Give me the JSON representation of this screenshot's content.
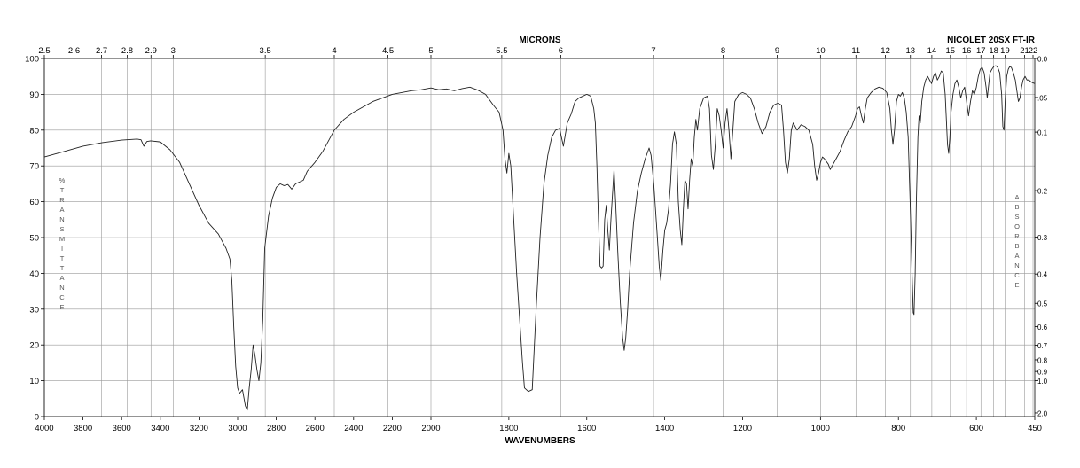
{
  "chart_data": {
    "type": "line",
    "instrument": "NICOLET 20SX FT-IR",
    "xlabel": "WAVENUMBERS",
    "x2label": "MICRONS",
    "ylabel": "%TRANSMITTANCE",
    "y2label": "ABSORBANCE",
    "grid": true,
    "xlim": [
      4000,
      450
    ],
    "ylim": [
      0,
      100
    ],
    "x_scale_breaks": [
      2000
    ],
    "x_ticks": [
      "4000",
      "3800",
      "3600",
      "3400",
      "3200",
      "3000",
      "2800",
      "2600",
      "2400",
      "2200",
      "2000",
      "1800",
      "1600",
      "1400",
      "1200",
      "1000",
      "800",
      "600",
      "450"
    ],
    "y_ticks": [
      "0",
      "10",
      "20",
      "30",
      "40",
      "50",
      "60",
      "70",
      "80",
      "90",
      "100"
    ],
    "micron_ticks": [
      "2.5",
      "2.6",
      "2.7",
      "2.8",
      "2.9",
      "3",
      "3.5",
      "4",
      "4.5",
      "5",
      "5.5",
      "6",
      "7",
      "8",
      "9",
      "10",
      "11",
      "12",
      "13",
      "14",
      "15",
      "16",
      "17",
      "18",
      "19",
      "21",
      "22"
    ],
    "absorbance_ticks": [
      "0.0",
      ".05",
      "0.1",
      "0.2",
      "0.3",
      "0.4",
      "0.5",
      "0.6",
      "0.7",
      "0.8",
      "0.9",
      "1.0",
      "2.0"
    ],
    "series": [
      {
        "points": [
          [
            4000,
            72.5
          ],
          [
            3900,
            74
          ],
          [
            3800,
            75.5
          ],
          [
            3700,
            76.5
          ],
          [
            3600,
            77.2
          ],
          [
            3520,
            77.5
          ],
          [
            3500,
            77.3
          ],
          [
            3485,
            75.5
          ],
          [
            3470,
            76.8
          ],
          [
            3450,
            77
          ],
          [
            3400,
            76.7
          ],
          [
            3350,
            74.5
          ],
          [
            3300,
            71
          ],
          [
            3250,
            65
          ],
          [
            3200,
            59
          ],
          [
            3150,
            54
          ],
          [
            3100,
            51
          ],
          [
            3080,
            49
          ],
          [
            3060,
            47
          ],
          [
            3040,
            44
          ],
          [
            3030,
            38
          ],
          [
            3020,
            25
          ],
          [
            3010,
            14
          ],
          [
            3000,
            8
          ],
          [
            2990,
            6.5
          ],
          [
            2975,
            7.5
          ],
          [
            2960,
            3
          ],
          [
            2950,
            1.8
          ],
          [
            2940,
            8
          ],
          [
            2930,
            13
          ],
          [
            2920,
            20
          ],
          [
            2910,
            17
          ],
          [
            2900,
            13
          ],
          [
            2890,
            10
          ],
          [
            2880,
            15
          ],
          [
            2870,
            27
          ],
          [
            2860,
            47
          ],
          [
            2840,
            56
          ],
          [
            2820,
            61
          ],
          [
            2800,
            64
          ],
          [
            2780,
            65
          ],
          [
            2760,
            64.5
          ],
          [
            2740,
            64.8
          ],
          [
            2720,
            63.5
          ],
          [
            2700,
            65
          ],
          [
            2680,
            65.5
          ],
          [
            2660,
            66
          ],
          [
            2640,
            68.5
          ],
          [
            2600,
            71
          ],
          [
            2560,
            74
          ],
          [
            2500,
            80
          ],
          [
            2450,
            83
          ],
          [
            2400,
            85
          ],
          [
            2300,
            88
          ],
          [
            2200,
            90
          ],
          [
            2100,
            91
          ],
          [
            2050,
            91.3
          ],
          [
            2000,
            91.8
          ],
          [
            1980,
            91.3
          ],
          [
            1960,
            91.5
          ],
          [
            1940,
            91
          ],
          [
            1920,
            91.6
          ],
          [
            1900,
            92
          ],
          [
            1880,
            91.2
          ],
          [
            1860,
            90
          ],
          [
            1840,
            87
          ],
          [
            1825,
            85
          ],
          [
            1815,
            80
          ],
          [
            1810,
            72
          ],
          [
            1805,
            68
          ],
          [
            1800,
            73.5
          ],
          [
            1795,
            70
          ],
          [
            1790,
            60
          ],
          [
            1780,
            40
          ],
          [
            1765,
            15
          ],
          [
            1760,
            8
          ],
          [
            1750,
            7
          ],
          [
            1740,
            7.5
          ],
          [
            1730,
            30
          ],
          [
            1720,
            50
          ],
          [
            1710,
            65
          ],
          [
            1700,
            73
          ],
          [
            1690,
            78
          ],
          [
            1680,
            80
          ],
          [
            1670,
            80.5
          ],
          [
            1660,
            75.5
          ],
          [
            1650,
            82
          ],
          [
            1640,
            84.5
          ],
          [
            1630,
            88
          ],
          [
            1620,
            89
          ],
          [
            1610,
            89.5
          ],
          [
            1600,
            90
          ],
          [
            1590,
            89.5
          ],
          [
            1582,
            86
          ],
          [
            1578,
            82
          ],
          [
            1574,
            70
          ],
          [
            1570,
            55
          ],
          [
            1566,
            42
          ],
          [
            1562,
            41.5
          ],
          [
            1558,
            42
          ],
          [
            1554,
            55
          ],
          [
            1550,
            59
          ],
          [
            1546,
            52
          ],
          [
            1542,
            46.5
          ],
          [
            1538,
            55
          ],
          [
            1534,
            62
          ],
          [
            1530,
            69
          ],
          [
            1526,
            60
          ],
          [
            1520,
            45
          ],
          [
            1514,
            32
          ],
          [
            1508,
            22
          ],
          [
            1504,
            18.5
          ],
          [
            1500,
            22
          ],
          [
            1495,
            30
          ],
          [
            1490,
            40
          ],
          [
            1480,
            54
          ],
          [
            1470,
            63
          ],
          [
            1460,
            68
          ],
          [
            1450,
            72
          ],
          [
            1440,
            75
          ],
          [
            1435,
            73
          ],
          [
            1428,
            65
          ],
          [
            1420,
            52
          ],
          [
            1414,
            42
          ],
          [
            1410,
            38
          ],
          [
            1405,
            46
          ],
          [
            1400,
            52
          ],
          [
            1395,
            54
          ],
          [
            1390,
            58
          ],
          [
            1385,
            65
          ],
          [
            1380,
            76
          ],
          [
            1375,
            79.5
          ],
          [
            1370,
            76
          ],
          [
            1365,
            60
          ],
          [
            1360,
            52
          ],
          [
            1356,
            48
          ],
          [
            1352,
            58
          ],
          [
            1348,
            66
          ],
          [
            1344,
            65
          ],
          [
            1340,
            58
          ],
          [
            1336,
            66
          ],
          [
            1332,
            72
          ],
          [
            1328,
            70
          ],
          [
            1324,
            78
          ],
          [
            1320,
            83
          ],
          [
            1316,
            80
          ],
          [
            1310,
            86
          ],
          [
            1300,
            89
          ],
          [
            1290,
            89.5
          ],
          [
            1285,
            86
          ],
          [
            1280,
            73
          ],
          [
            1275,
            69
          ],
          [
            1270,
            76
          ],
          [
            1265,
            86
          ],
          [
            1260,
            84
          ],
          [
            1255,
            80
          ],
          [
            1250,
            75
          ],
          [
            1245,
            82
          ],
          [
            1240,
            86
          ],
          [
            1235,
            80
          ],
          [
            1230,
            72
          ],
          [
            1225,
            80
          ],
          [
            1220,
            88
          ],
          [
            1210,
            90
          ],
          [
            1200,
            90.5
          ],
          [
            1190,
            90
          ],
          [
            1180,
            89
          ],
          [
            1170,
            86
          ],
          [
            1160,
            82
          ],
          [
            1150,
            79
          ],
          [
            1140,
            81
          ],
          [
            1130,
            85
          ],
          [
            1120,
            87
          ],
          [
            1110,
            87.5
          ],
          [
            1100,
            87
          ],
          [
            1095,
            80
          ],
          [
            1090,
            71
          ],
          [
            1085,
            68
          ],
          [
            1080,
            72
          ],
          [
            1075,
            80
          ],
          [
            1070,
            82
          ],
          [
            1060,
            80
          ],
          [
            1050,
            81.5
          ],
          [
            1040,
            81
          ],
          [
            1030,
            80
          ],
          [
            1020,
            76
          ],
          [
            1015,
            70
          ],
          [
            1010,
            66
          ],
          [
            1005,
            68
          ],
          [
            1000,
            71
          ],
          [
            995,
            72.5
          ],
          [
            990,
            72
          ],
          [
            980,
            70.5
          ],
          [
            975,
            69
          ],
          [
            970,
            70
          ],
          [
            960,
            72
          ],
          [
            950,
            74
          ],
          [
            940,
            77
          ],
          [
            930,
            79.5
          ],
          [
            920,
            81
          ],
          [
            910,
            84
          ],
          [
            905,
            86
          ],
          [
            900,
            86.5
          ],
          [
            895,
            84
          ],
          [
            890,
            82
          ],
          [
            885,
            86
          ],
          [
            880,
            89
          ],
          [
            870,
            90.5
          ],
          [
            860,
            91.5
          ],
          [
            850,
            92
          ],
          [
            840,
            91.7
          ],
          [
            830,
            90.5
          ],
          [
            822,
            86
          ],
          [
            818,
            80
          ],
          [
            814,
            76
          ],
          [
            810,
            80
          ],
          [
            805,
            88
          ],
          [
            800,
            90
          ],
          [
            795,
            89.5
          ],
          [
            790,
            90.5
          ],
          [
            785,
            89
          ],
          [
            780,
            85
          ],
          [
            775,
            78
          ],
          [
            770,
            60
          ],
          [
            765,
            40
          ],
          [
            762,
            29
          ],
          [
            760,
            28.5
          ],
          [
            757,
            40
          ],
          [
            754,
            60
          ],
          [
            750,
            78
          ],
          [
            747,
            84
          ],
          [
            744,
            82
          ],
          [
            740,
            88
          ],
          [
            735,
            92
          ],
          [
            730,
            94
          ],
          [
            725,
            95
          ],
          [
            720,
            94
          ],
          [
            715,
            93
          ],
          [
            710,
            95
          ],
          [
            705,
            96
          ],
          [
            700,
            94
          ],
          [
            695,
            95
          ],
          [
            690,
            96.5
          ],
          [
            685,
            96
          ],
          [
            680,
            90
          ],
          [
            677,
            83
          ],
          [
            674,
            76
          ],
          [
            671,
            73.5
          ],
          [
            668,
            78
          ],
          [
            665,
            85
          ],
          [
            660,
            90
          ],
          [
            655,
            93
          ],
          [
            650,
            94
          ],
          [
            645,
            92
          ],
          [
            640,
            89
          ],
          [
            635,
            91
          ],
          [
            630,
            92
          ],
          [
            625,
            88
          ],
          [
            620,
            84
          ],
          [
            615,
            88
          ],
          [
            610,
            91
          ],
          [
            605,
            90
          ],
          [
            600,
            92
          ],
          [
            595,
            95
          ],
          [
            590,
            97
          ],
          [
            585,
            97.5
          ],
          [
            580,
            96
          ],
          [
            575,
            92
          ],
          [
            572,
            89
          ],
          [
            568,
            93
          ],
          [
            565,
            96
          ],
          [
            560,
            97
          ],
          [
            555,
            97.8
          ],
          [
            550,
            98
          ],
          [
            545,
            97.5
          ],
          [
            540,
            96
          ],
          [
            535,
            90
          ],
          [
            532,
            81
          ],
          [
            529,
            80
          ],
          [
            526,
            88
          ],
          [
            522,
            95
          ],
          [
            518,
            97
          ],
          [
            514,
            97.8
          ],
          [
            510,
            97.5
          ],
          [
            505,
            96
          ],
          [
            500,
            94
          ],
          [
            496,
            91
          ],
          [
            492,
            88
          ],
          [
            488,
            89
          ],
          [
            484,
            92
          ],
          [
            480,
            94
          ],
          [
            475,
            95
          ],
          [
            470,
            94
          ],
          [
            465,
            94
          ],
          [
            460,
            93.5
          ],
          [
            455,
            93.2
          ],
          [
            450,
            93
          ]
        ]
      }
    ]
  }
}
